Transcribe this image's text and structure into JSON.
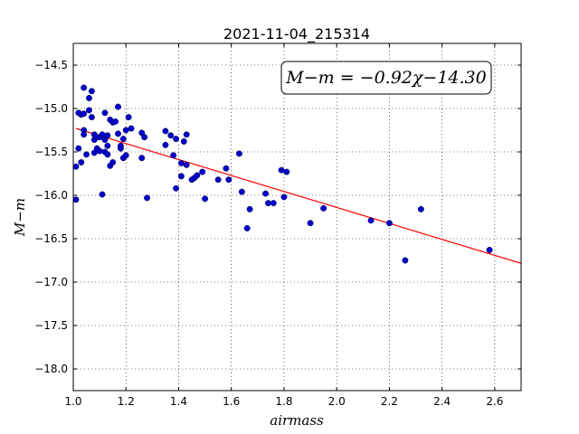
{
  "chart_data": {
    "type": "scatter",
    "title": "2021-11-04_215314",
    "xlabel": "airmass",
    "ylabel": "M−m",
    "xlim": [
      1.0,
      2.7
    ],
    "ylim": [
      -18.25,
      -14.25
    ],
    "y_inverted": true,
    "grid": true,
    "x_ticks": [
      1.0,
      1.2,
      1.4,
      1.6,
      1.8,
      2.0,
      2.2,
      2.4,
      2.6
    ],
    "x_tick_labels": [
      "1.0",
      "1.2",
      "1.4",
      "1.6",
      "1.8",
      "2.0",
      "2.2",
      "2.4",
      "2.6"
    ],
    "y_ticks": [
      -14.5,
      -15.0,
      -15.5,
      -16.0,
      -16.5,
      -17.0,
      -17.5,
      -18.0
    ],
    "y_tick_labels": [
      "−14.5",
      "−15.0",
      "−15.5",
      "−16.0",
      "−16.5",
      "−17.0",
      "−17.5",
      "−18.0"
    ],
    "annotation": "M−m = −0.92χ−14.30",
    "annotation_position": "top-right",
    "fit": {
      "slope": -0.92,
      "intercept": -14.3,
      "x_range": [
        1.01,
        2.7
      ],
      "color": "#ff0000"
    },
    "point_color": "#0000cc",
    "points": [
      [
        1.01,
        -15.67
      ],
      [
        1.01,
        -16.05
      ],
      [
        1.02,
        -15.46
      ],
      [
        1.02,
        -15.05
      ],
      [
        1.03,
        -15.07
      ],
      [
        1.03,
        -15.62
      ],
      [
        1.04,
        -14.76
      ],
      [
        1.04,
        -15.06
      ],
      [
        1.04,
        -15.25
      ],
      [
        1.04,
        -15.3
      ],
      [
        1.05,
        -15.53
      ],
      [
        1.06,
        -15.02
      ],
      [
        1.06,
        -14.88
      ],
      [
        1.07,
        -14.8
      ],
      [
        1.07,
        -15.1
      ],
      [
        1.08,
        -15.3
      ],
      [
        1.08,
        -15.36
      ],
      [
        1.08,
        -15.51
      ],
      [
        1.09,
        -15.46
      ],
      [
        1.09,
        -15.33
      ],
      [
        1.1,
        -15.49
      ],
      [
        1.1,
        -15.33
      ],
      [
        1.11,
        -15.99
      ],
      [
        1.11,
        -15.3
      ],
      [
        1.12,
        -15.5
      ],
      [
        1.12,
        -15.36
      ],
      [
        1.12,
        -15.05
      ],
      [
        1.13,
        -15.43
      ],
      [
        1.13,
        -15.53
      ],
      [
        1.13,
        -15.31
      ],
      [
        1.14,
        -15.13
      ],
      [
        1.14,
        -15.66
      ],
      [
        1.15,
        -15.62
      ],
      [
        1.15,
        -15.16
      ],
      [
        1.16,
        -15.15
      ],
      [
        1.17,
        -15.29
      ],
      [
        1.17,
        -14.98
      ],
      [
        1.18,
        -15.46
      ],
      [
        1.18,
        -15.43
      ],
      [
        1.19,
        -15.35
      ],
      [
        1.19,
        -15.57
      ],
      [
        1.2,
        -15.54
      ],
      [
        1.2,
        -15.25
      ],
      [
        1.21,
        -15.1
      ],
      [
        1.22,
        -15.23
      ],
      [
        1.26,
        -15.57
      ],
      [
        1.26,
        -15.28
      ],
      [
        1.27,
        -15.33
      ],
      [
        1.28,
        -16.03
      ],
      [
        1.35,
        -15.42
      ],
      [
        1.35,
        -15.26
      ],
      [
        1.37,
        -15.31
      ],
      [
        1.38,
        -15.54
      ],
      [
        1.39,
        -15.35
      ],
      [
        1.39,
        -15.92
      ],
      [
        1.41,
        -15.63
      ],
      [
        1.41,
        -15.78
      ],
      [
        1.42,
        -15.38
      ],
      [
        1.43,
        -15.3
      ],
      [
        1.43,
        -15.65
      ],
      [
        1.45,
        -15.82
      ],
      [
        1.46,
        -15.8
      ],
      [
        1.47,
        -15.77
      ],
      [
        1.49,
        -15.73
      ],
      [
        1.5,
        -16.04
      ],
      [
        1.55,
        -15.82
      ],
      [
        1.58,
        -15.69
      ],
      [
        1.59,
        -15.82
      ],
      [
        1.63,
        -15.52
      ],
      [
        1.64,
        -15.96
      ],
      [
        1.66,
        -16.38
      ],
      [
        1.67,
        -16.16
      ],
      [
        1.73,
        -15.98
      ],
      [
        1.74,
        -16.09
      ],
      [
        1.76,
        -16.09
      ],
      [
        1.79,
        -15.71
      ],
      [
        1.8,
        -16.02
      ],
      [
        1.81,
        -15.73
      ],
      [
        1.9,
        -16.32
      ],
      [
        1.95,
        -16.15
      ],
      [
        2.13,
        -16.29
      ],
      [
        2.2,
        -16.32
      ],
      [
        2.26,
        -16.75
      ],
      [
        2.32,
        -16.16
      ],
      [
        2.58,
        -16.63
      ]
    ]
  }
}
